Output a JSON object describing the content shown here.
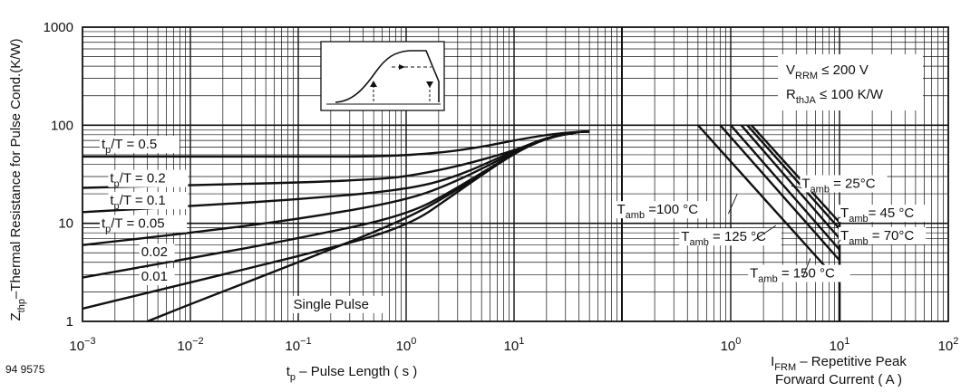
{
  "figure_id": "94 9575",
  "chart_data": [
    {
      "type": "line",
      "title": "",
      "ylabel": {
        "base": "Z",
        "sub": "thp",
        "rest": "–Thermal Resistance for Pulse Cond.(K/W)"
      },
      "xlabel": {
        "base": "t",
        "sub": "p",
        "rest": " – Pulse Length ( s )"
      },
      "xscale": "log",
      "yscale": "log",
      "xlim": [
        0.001,
        100
      ],
      "ylim": [
        1,
        1000
      ],
      "grid": true,
      "x_ticks": [
        {
          "value": 0.001,
          "mantissa": "10",
          "exponent": "−3"
        },
        {
          "value": 0.01,
          "mantissa": "10",
          "exponent": "−2"
        },
        {
          "value": 0.1,
          "mantissa": "10",
          "exponent": "−1"
        },
        {
          "value": 1,
          "mantissa": "10",
          "exponent": "0"
        },
        {
          "value": 10,
          "mantissa": "10",
          "exponent": "1"
        }
      ],
      "y_ticks": [
        {
          "value": 1,
          "label": "1"
        },
        {
          "value": 10,
          "label": "10"
        },
        {
          "value": 100,
          "label": "100"
        },
        {
          "value": 1000,
          "label": "1000"
        }
      ],
      "series": [
        {
          "name": "t_p/T = 0.5",
          "label_parts": [
            "t",
            "p",
            "/T = 0.5"
          ],
          "label_at": [
            0.0015,
            58
          ],
          "points": [
            [
              0.001,
              48
            ],
            [
              0.01,
              48
            ],
            [
              0.1,
              48
            ],
            [
              0.6,
              48
            ],
            [
              2,
              52
            ],
            [
              5,
              60
            ],
            [
              10,
              70
            ],
            [
              20,
              80
            ],
            [
              40,
              86
            ],
            [
              50,
              86
            ]
          ]
        },
        {
          "name": "t_p/T = 0.2",
          "label_parts": [
            "t",
            "p",
            "/T = 0.2"
          ],
          "label_at": [
            0.0018,
            26
          ],
          "points": [
            [
              0.001,
              23
            ],
            [
              0.01,
              24.5
            ],
            [
              0.1,
              26
            ],
            [
              0.5,
              28
            ],
            [
              1,
              30
            ],
            [
              3,
              38
            ],
            [
              10,
              55
            ],
            [
              20,
              75
            ],
            [
              40,
              86
            ],
            [
              50,
              86
            ]
          ]
        },
        {
          "name": "t_p/T = 0.1",
          "label_parts": [
            "t",
            "p",
            "/T = 0.1"
          ],
          "label_at": [
            0.0018,
            15.5
          ],
          "points": [
            [
              0.001,
              13
            ],
            [
              0.01,
              15
            ],
            [
              0.1,
              17.5
            ],
            [
              1,
              22
            ],
            [
              3,
              30
            ],
            [
              10,
              55
            ],
            [
              20,
              75
            ],
            [
              40,
              86
            ],
            [
              50,
              86
            ]
          ]
        },
        {
          "name": "t_p/T = 0.05",
          "label_parts": [
            "t",
            "p",
            "/T = 0.05"
          ],
          "label_at": [
            0.0015,
            9
          ],
          "points": [
            [
              0.001,
              6
            ],
            [
              0.01,
              8
            ],
            [
              0.1,
              11
            ],
            [
              1,
              17
            ],
            [
              3,
              27
            ],
            [
              10,
              53
            ],
            [
              20,
              74
            ],
            [
              40,
              86
            ],
            [
              50,
              86
            ]
          ]
        },
        {
          "name": "0.02",
          "label_parts": [
            "0.02"
          ],
          "label_at": [
            0.0035,
            4.6
          ],
          "points": [
            [
              0.001,
              2.8
            ],
            [
              0.01,
              4.4
            ],
            [
              0.1,
              7
            ],
            [
              1,
              12
            ],
            [
              3,
              23
            ],
            [
              10,
              52
            ],
            [
              20,
              74
            ],
            [
              40,
              86
            ],
            [
              50,
              86
            ]
          ]
        },
        {
          "name": "0.01",
          "label_parts": [
            "0.01"
          ],
          "label_at": [
            0.0035,
            2.6
          ],
          "points": [
            [
              0.001,
              1.35
            ],
            [
              0.01,
              2.5
            ],
            [
              0.1,
              4.6
            ],
            [
              1,
              9
            ],
            [
              3,
              21
            ],
            [
              10,
              52
            ],
            [
              20,
              74
            ],
            [
              40,
              86
            ],
            [
              50,
              86
            ]
          ]
        },
        {
          "name": "Single Pulse",
          "label_parts": [
            "Single Pulse"
          ],
          "label_at": [
            0.09,
            1.35
          ],
          "points": [
            [
              0.004,
              1
            ],
            [
              0.01,
              1.5
            ],
            [
              0.1,
              4
            ],
            [
              1,
              11
            ],
            [
              3,
              22
            ],
            [
              10,
              52
            ],
            [
              20,
              74
            ],
            [
              40,
              86
            ],
            [
              50,
              86
            ]
          ]
        }
      ]
    },
    {
      "type": "line",
      "title": "",
      "xlabel_lines": [
        {
          "base": "I",
          "sub": "FRM",
          "rest": " – Repetitive Peak"
        },
        {
          "base": "Forward Current ( A )",
          "sub": "",
          "rest": ""
        }
      ],
      "xscale": "log",
      "yscale": "log",
      "xlim": [
        0.1,
        100
      ],
      "ylim": [
        1,
        1000
      ],
      "grid": true,
      "x_ticks": [
        {
          "value": 1,
          "mantissa": "10",
          "exponent": "0"
        },
        {
          "value": 10,
          "mantissa": "10",
          "exponent": "1"
        },
        {
          "value": 100,
          "mantissa": "10",
          "exponent": "2"
        }
      ],
      "conditions": [
        {
          "base": "V",
          "sub": "RRM",
          "rest": " ≤ 200 V"
        },
        {
          "base": "R",
          "sub": "thJA",
          "rest": " ≤ 100 K/W"
        }
      ],
      "series": [
        {
          "name": "T_amb = 25°C",
          "label_parts": [
            "T",
            "amb",
            " = 25°C"
          ],
          "label_at": [
            4.5,
            23
          ],
          "points": [
            [
              1.55,
              100
            ],
            [
              10,
              10.2
            ]
          ]
        },
        {
          "name": "T_amb = 45 °C",
          "label_parts": [
            "T",
            "amb",
            "= 45 °C"
          ],
          "label_at": [
            10.2,
            11.5
          ],
          "points": [
            [
              1.42,
              100
            ],
            [
              10,
              8.8
            ]
          ]
        },
        {
          "name": "T_amb = 70°C",
          "label_parts": [
            "T",
            "amb",
            " = 70°C"
          ],
          "label_at": [
            10.2,
            6.8
          ],
          "points": [
            [
              1.25,
              100
            ],
            [
              10,
              7
            ]
          ]
        },
        {
          "name": "T_amb =100 °C",
          "label_parts": [
            "T",
            "amb",
            " =100 °C"
          ],
          "label_at": [
            0.09,
            12.5
          ],
          "points": [
            [
              1.0,
              100
            ],
            [
              10,
              5.4
            ]
          ]
        },
        {
          "name": "T_amb = 125 °C",
          "label_parts": [
            "T",
            "amb",
            " = 125 °C"
          ],
          "label_at": [
            0.35,
            6.6
          ],
          "points": [
            [
              0.8,
              100
            ],
            [
              10,
              4.2
            ]
          ]
        },
        {
          "name": "T_amb = 150 °C",
          "label_parts": [
            "T",
            "amb",
            " = 150 °C"
          ],
          "label_at": [
            1.5,
            2.8
          ],
          "points": [
            [
              0.5,
              100
            ],
            [
              10,
              2.5
            ]
          ]
        }
      ]
    }
  ]
}
